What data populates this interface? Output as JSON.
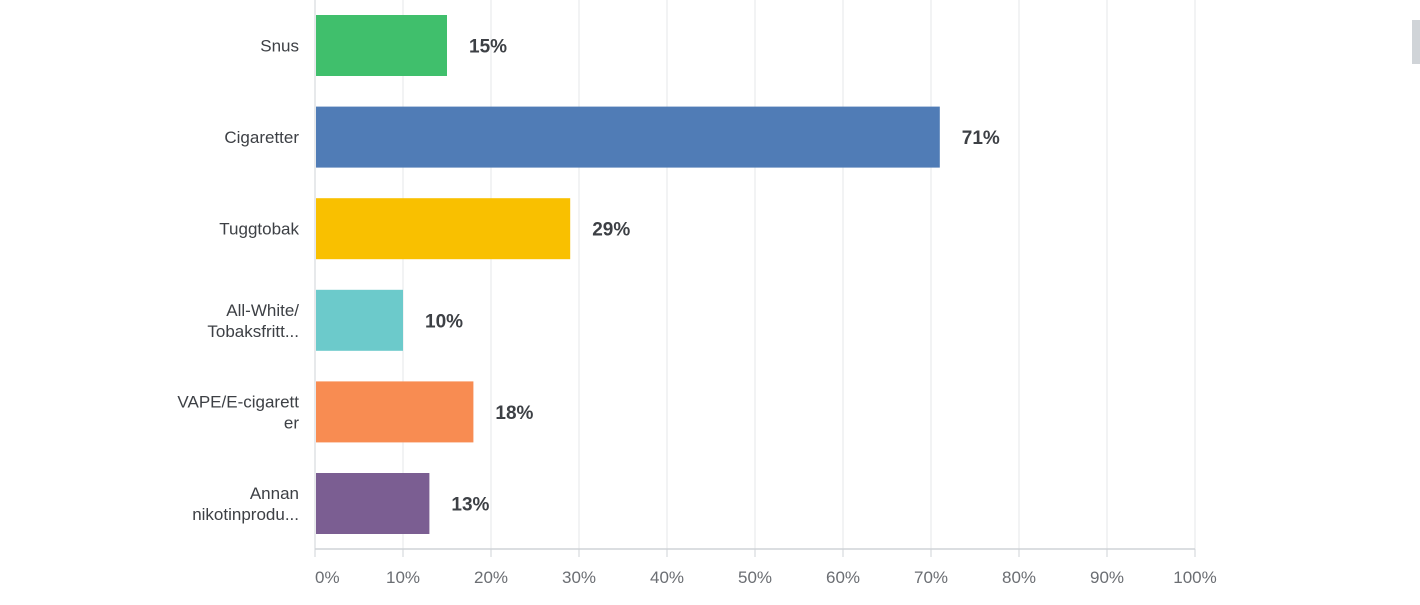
{
  "chart_data": {
    "type": "bar",
    "orientation": "horizontal",
    "categories": [
      [
        "Snus"
      ],
      [
        "Cigaretter"
      ],
      [
        "Tuggtobak"
      ],
      [
        "All-White/",
        "Tobaksfritt..."
      ],
      [
        "VAPE/E-cigarett",
        "er"
      ],
      [
        "Annan",
        "nikotinprodu..."
      ]
    ],
    "values": [
      15,
      71,
      29,
      10,
      18,
      13
    ],
    "value_labels": [
      "15%",
      "71%",
      "29%",
      "10%",
      "18%",
      "13%"
    ],
    "colors": [
      "#40bf6c",
      "#507cb6",
      "#f9c000",
      "#6ccacb",
      "#f88c52",
      "#7b5e92"
    ],
    "xlim": [
      0,
      100
    ],
    "x_ticks": [
      "0%",
      "10%",
      "20%",
      "30%",
      "40%",
      "50%",
      "60%",
      "70%",
      "80%",
      "90%",
      "100%"
    ],
    "grid": true,
    "legend": "none"
  }
}
